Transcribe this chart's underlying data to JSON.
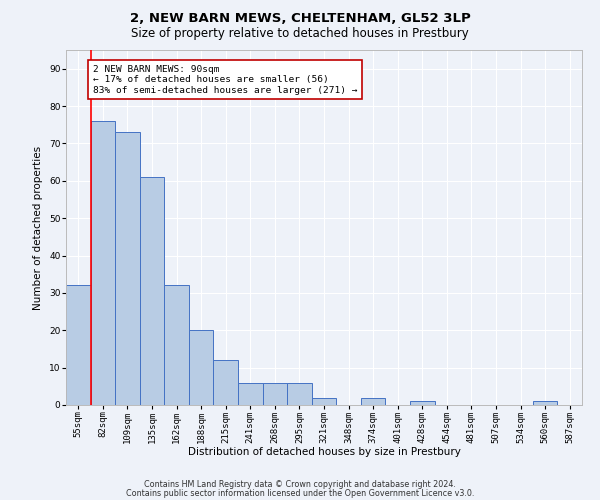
{
  "title": "2, NEW BARN MEWS, CHELTENHAM, GL52 3LP",
  "subtitle": "Size of property relative to detached houses in Prestbury",
  "xlabel": "Distribution of detached houses by size in Prestbury",
  "ylabel": "Number of detached properties",
  "footnote1": "Contains HM Land Registry data © Crown copyright and database right 2024.",
  "footnote2": "Contains public sector information licensed under the Open Government Licence v3.0.",
  "bar_labels": [
    "55sqm",
    "82sqm",
    "109sqm",
    "135sqm",
    "162sqm",
    "188sqm",
    "215sqm",
    "241sqm",
    "268sqm",
    "295sqm",
    "321sqm",
    "348sqm",
    "374sqm",
    "401sqm",
    "428sqm",
    "454sqm",
    "481sqm",
    "507sqm",
    "534sqm",
    "560sqm",
    "587sqm"
  ],
  "bar_values": [
    32,
    76,
    73,
    61,
    32,
    20,
    12,
    6,
    6,
    6,
    2,
    0,
    2,
    0,
    1,
    0,
    0,
    0,
    0,
    1,
    0
  ],
  "bar_color": "#b8cce4",
  "bar_edge_color": "#4472c4",
  "ylim": [
    0,
    95
  ],
  "yticks": [
    0,
    10,
    20,
    30,
    40,
    50,
    60,
    70,
    80,
    90
  ],
  "red_line_color": "#ff0000",
  "annotation_text": "2 NEW BARN MEWS: 90sqm\n← 17% of detached houses are smaller (56)\n83% of semi-detached houses are larger (271) →",
  "ann_box_color": "#ffffff",
  "ann_edge_color": "#c00000",
  "background_color": "#eef2f9",
  "grid_color": "#ffffff",
  "title_fontsize": 9.5,
  "subtitle_fontsize": 8.5,
  "axis_label_fontsize": 7.5,
  "tick_fontsize": 6.5,
  "ann_fontsize": 6.8,
  "footnote_fontsize": 5.8
}
